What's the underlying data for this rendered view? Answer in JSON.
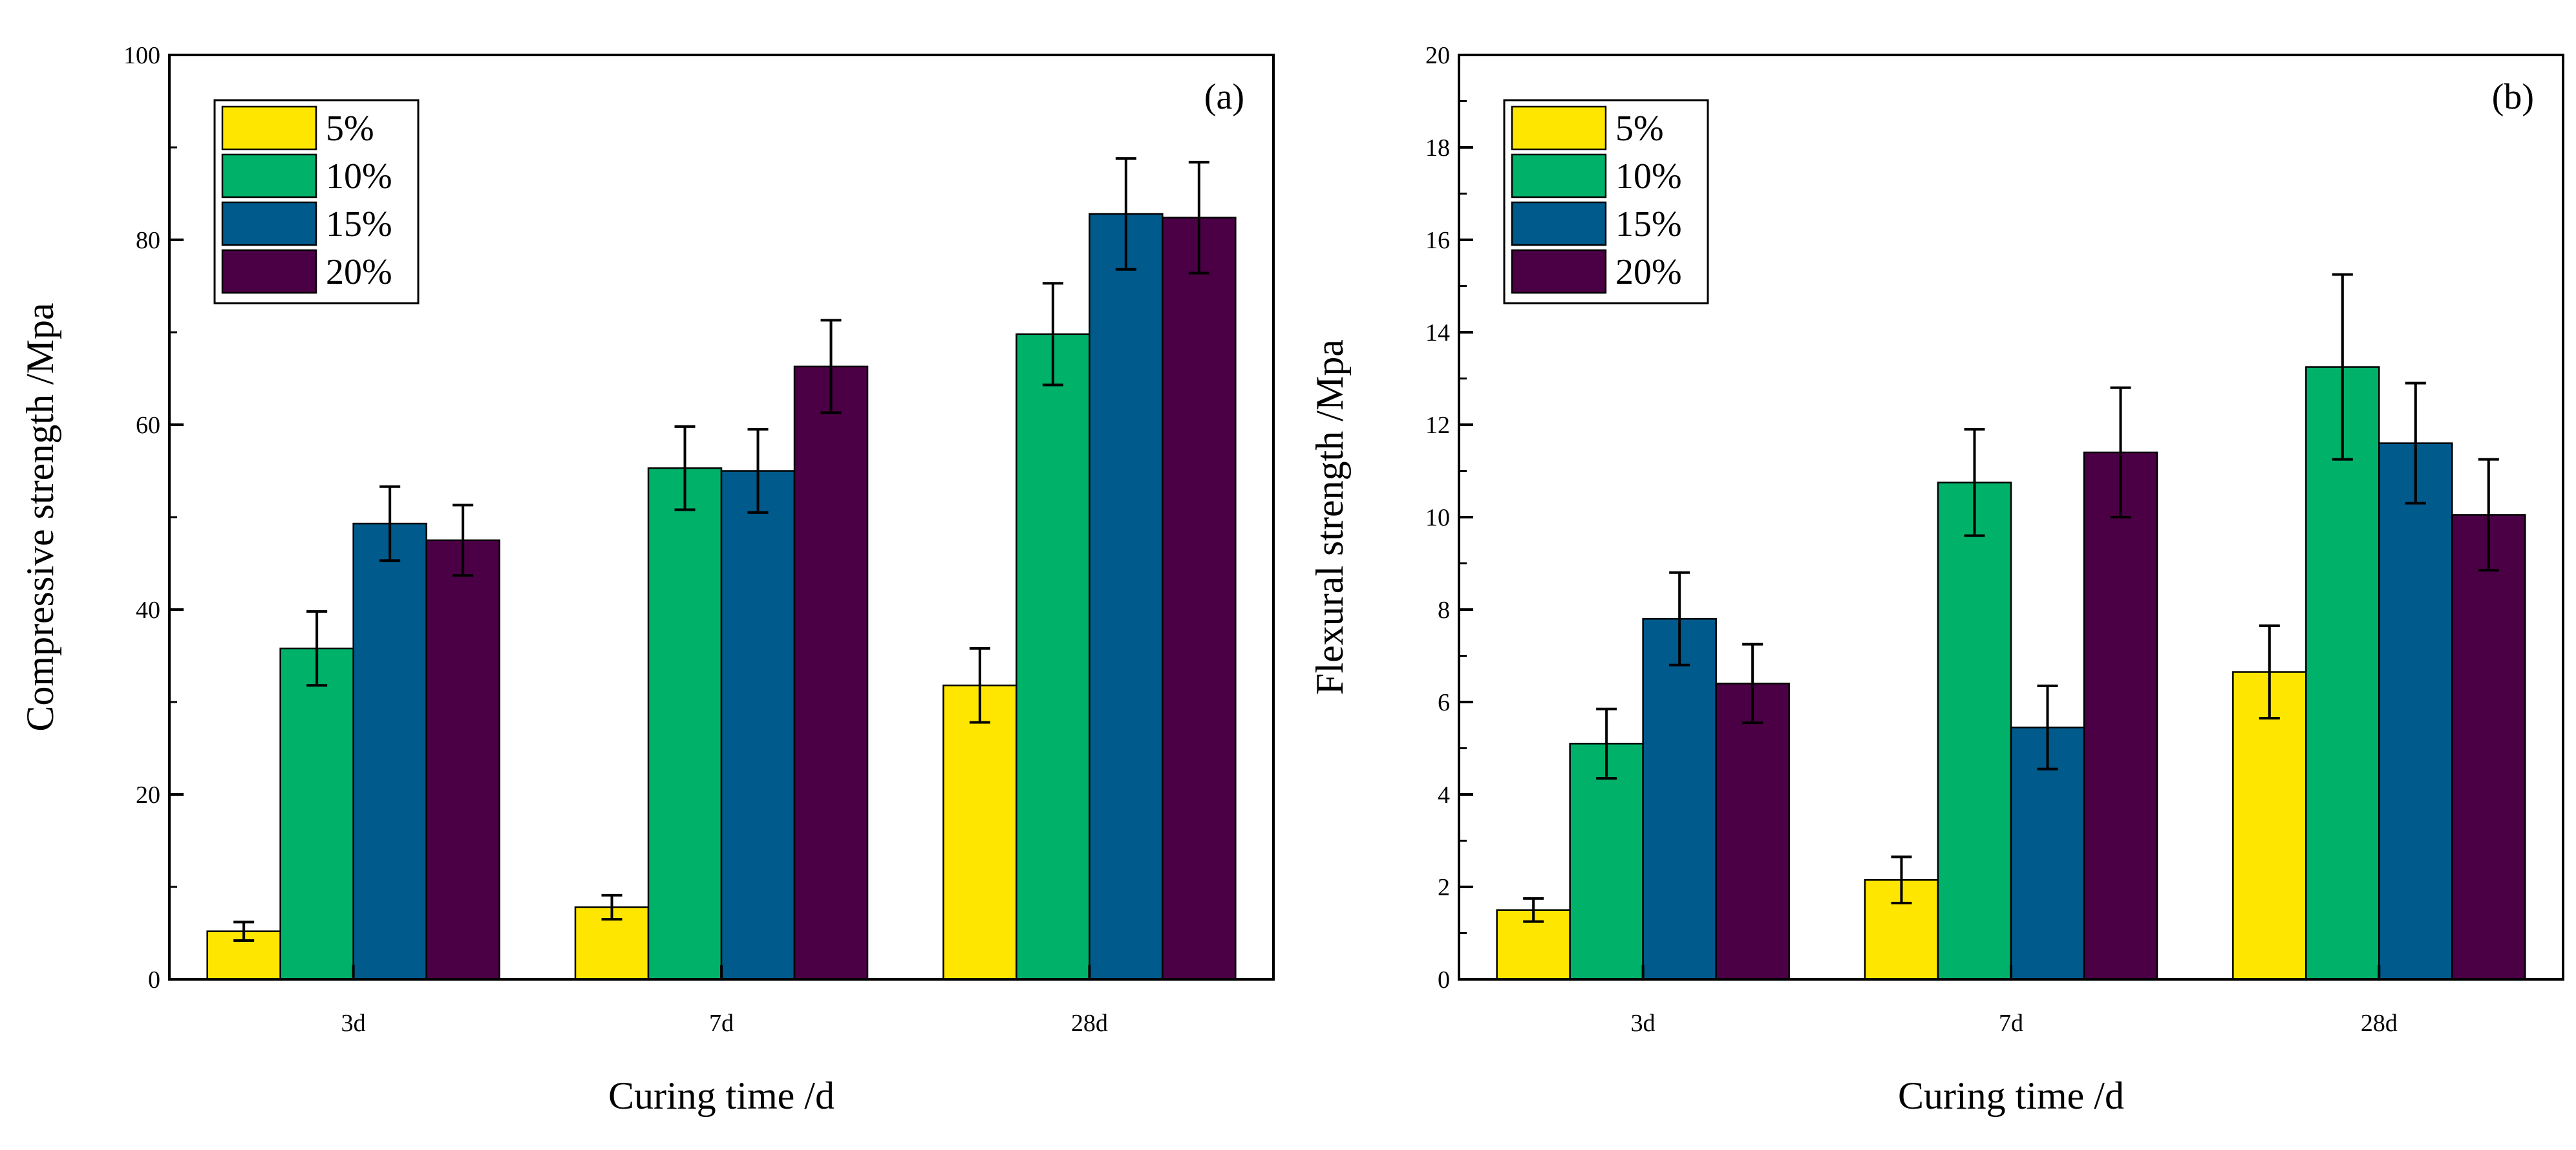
{
  "chart_data": [
    {
      "type": "bar",
      "panel_label": "(a)",
      "xlabel": "Curing time /d",
      "ylabel": "Compressive strength /Mpa",
      "categories": [
        "3d",
        "7d",
        "28d"
      ],
      "ylim": [
        0,
        100
      ],
      "yticks": [
        "0",
        "20",
        "40",
        "60",
        "80",
        "100"
      ],
      "legend_position": "top-left",
      "series": [
        {
          "name": "5%",
          "color": "#FFE600",
          "values": [
            5.2,
            7.8,
            31.8
          ],
          "errors": [
            1.0,
            1.3,
            4.0
          ]
        },
        {
          "name": "10%",
          "color": "#00B16A",
          "values": [
            35.8,
            55.3,
            69.8
          ],
          "errors": [
            4.0,
            4.5,
            5.5
          ]
        },
        {
          "name": "15%",
          "color": "#005A8C",
          "values": [
            49.3,
            55.0,
            82.8
          ],
          "errors": [
            4.0,
            4.5,
            6.0
          ]
        },
        {
          "name": "20%",
          "color": "#4B0045",
          "values": [
            47.5,
            66.3,
            82.4
          ],
          "errors": [
            3.8,
            5.0,
            6.0
          ]
        }
      ]
    },
    {
      "type": "bar",
      "panel_label": "(b)",
      "xlabel": "Curing time /d",
      "ylabel": "Flexural strength /Mpa",
      "categories": [
        "3d",
        "7d",
        "28d"
      ],
      "ylim": [
        0,
        20
      ],
      "yticks": [
        "0",
        "2",
        "4",
        "6",
        "8",
        "10",
        "12",
        "14",
        "16",
        "18",
        "20"
      ],
      "legend_position": "top-left",
      "series": [
        {
          "name": "5%",
          "color": "#FFE600",
          "values": [
            1.5,
            2.15,
            6.65
          ],
          "errors": [
            0.25,
            0.5,
            1.0
          ]
        },
        {
          "name": "10%",
          "color": "#00B16A",
          "values": [
            5.1,
            10.75,
            13.25
          ],
          "errors": [
            0.75,
            1.15,
            2.0
          ]
        },
        {
          "name": "15%",
          "color": "#005A8C",
          "values": [
            7.8,
            5.45,
            11.6
          ],
          "errors": [
            1.0,
            0.9,
            1.3
          ]
        },
        {
          "name": "20%",
          "color": "#4B0045",
          "values": [
            6.4,
            11.4,
            10.05
          ],
          "errors": [
            0.85,
            1.4,
            1.2
          ]
        }
      ]
    }
  ]
}
